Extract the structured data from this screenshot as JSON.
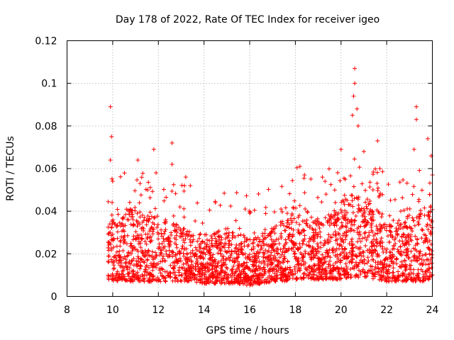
{
  "chart_data": {
    "type": "scatter",
    "title": "Day 178 of 2022, Rate Of TEC Index for receiver igeo",
    "xlabel": "GPS time / hours",
    "ylabel": "ROTI / TECUs",
    "xlim": [
      8,
      24
    ],
    "ylim": [
      0,
      0.12
    ],
    "xticks": [
      8,
      10,
      12,
      14,
      16,
      18,
      20,
      22,
      24
    ],
    "xtick_labels": [
      "8",
      "10",
      "12",
      "14",
      "16",
      "18",
      "20",
      "22",
      "24"
    ],
    "yticks": [
      0,
      0.02,
      0.04,
      0.06,
      0.08,
      0.1,
      0.12
    ],
    "ytick_labels": [
      "0",
      "0.02",
      "0.04",
      "0.06",
      "0.08",
      "0.1",
      "0.12"
    ],
    "grid": true,
    "marker": "+",
    "color": "#ff0000",
    "series": [
      {
        "name": "ROTI",
        "envelope": {
          "x": [
            9.8,
            10.0,
            10.5,
            11.0,
            11.5,
            12.0,
            12.5,
            13.0,
            13.5,
            14.0,
            14.5,
            15.0,
            15.5,
            16.0,
            16.5,
            17.0,
            17.5,
            18.0,
            18.5,
            19.0,
            19.5,
            20.0,
            20.5,
            21.0,
            21.5,
            22.0,
            22.5,
            23.0,
            23.5,
            24.0
          ],
          "typical_low": [
            0.008,
            0.007,
            0.007,
            0.007,
            0.007,
            0.007,
            0.007,
            0.007,
            0.007,
            0.006,
            0.006,
            0.006,
            0.006,
            0.005,
            0.006,
            0.007,
            0.007,
            0.008,
            0.008,
            0.008,
            0.008,
            0.008,
            0.009,
            0.009,
            0.008,
            0.007,
            0.007,
            0.007,
            0.007,
            0.008
          ],
          "typical_high": [
            0.032,
            0.04,
            0.04,
            0.042,
            0.038,
            0.038,
            0.035,
            0.033,
            0.03,
            0.03,
            0.03,
            0.03,
            0.03,
            0.028,
            0.03,
            0.032,
            0.036,
            0.045,
            0.04,
            0.037,
            0.04,
            0.045,
            0.048,
            0.045,
            0.042,
            0.037,
            0.035,
            0.035,
            0.04,
            0.045
          ]
        },
        "peaks": [
          {
            "x": 9.9,
            "y": 0.089
          },
          {
            "x": 9.95,
            "y": 0.075
          },
          {
            "x": 9.9,
            "y": 0.064
          },
          {
            "x": 10.0,
            "y": 0.054
          },
          {
            "x": 11.1,
            "y": 0.064
          },
          {
            "x": 11.2,
            "y": 0.053
          },
          {
            "x": 11.8,
            "y": 0.069
          },
          {
            "x": 11.9,
            "y": 0.058
          },
          {
            "x": 12.6,
            "y": 0.072
          },
          {
            "x": 12.6,
            "y": 0.062
          },
          {
            "x": 13.2,
            "y": 0.056
          },
          {
            "x": 13.4,
            "y": 0.052
          },
          {
            "x": 14.5,
            "y": 0.044
          },
          {
            "x": 15.8,
            "y": 0.041
          },
          {
            "x": 16.0,
            "y": 0.039
          },
          {
            "x": 18.2,
            "y": 0.061
          },
          {
            "x": 18.4,
            "y": 0.057
          },
          {
            "x": 19.3,
            "y": 0.054
          },
          {
            "x": 20.0,
            "y": 0.069
          },
          {
            "x": 20.6,
            "y": 0.107
          },
          {
            "x": 20.6,
            "y": 0.1
          },
          {
            "x": 20.55,
            "y": 0.094
          },
          {
            "x": 20.7,
            "y": 0.088
          },
          {
            "x": 20.5,
            "y": 0.085
          },
          {
            "x": 20.75,
            "y": 0.08
          },
          {
            "x": 21.0,
            "y": 0.068
          },
          {
            "x": 21.6,
            "y": 0.073
          },
          {
            "x": 21.7,
            "y": 0.06
          },
          {
            "x": 23.3,
            "y": 0.089
          },
          {
            "x": 23.3,
            "y": 0.083
          },
          {
            "x": 23.2,
            "y": 0.069
          },
          {
            "x": 23.8,
            "y": 0.074
          },
          {
            "x": 23.95,
            "y": 0.066
          },
          {
            "x": 24.0,
            "y": 0.057
          }
        ]
      }
    ]
  }
}
